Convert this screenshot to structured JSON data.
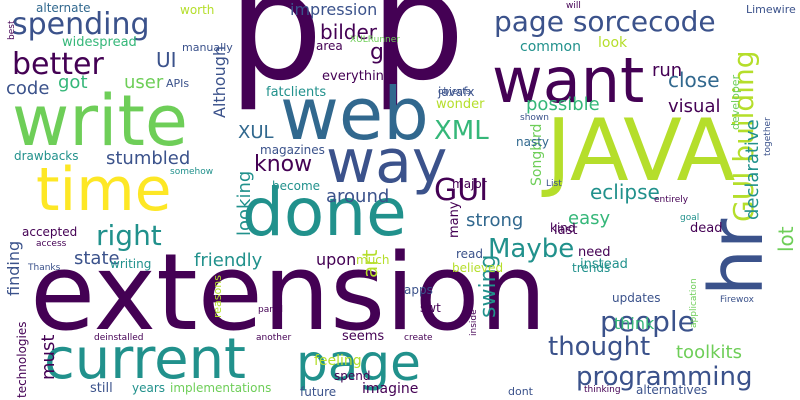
{
  "palette": {
    "dark_purple": "#440154",
    "indigo": "#3b528b",
    "slate": "#31688e",
    "teal": "#21918c",
    "sea": "#35b779",
    "green": "#6ece58",
    "lime": "#b5de2b",
    "yellow": "#fde725"
  },
  "words": [
    "p",
    "p",
    "extension",
    "web",
    "want",
    "JAVA",
    "way",
    "write",
    "done",
    "time",
    "hr",
    "current",
    "page",
    "page sorcecode",
    "spending",
    "better",
    "XML",
    "GUI building",
    "GUI",
    "Maybe",
    "right",
    "people",
    "thought",
    "programming",
    "impression",
    "bilder",
    "go",
    "UI",
    "user",
    "code",
    "got",
    "Although",
    "run",
    "close",
    "possible",
    "visual",
    "declarative",
    "art",
    "swing",
    "know",
    "stumbled",
    "XUL",
    "toolkits",
    "eclipse",
    "Songbird",
    "strong",
    "easy",
    "looking",
    "friendly",
    "state",
    "upon",
    "around",
    "think",
    "finding",
    "must",
    "lot",
    "worth",
    "alternate",
    "Limewire",
    "will",
    "best",
    "widespread",
    "manually",
    "area",
    "XULRunner",
    "common",
    "look",
    "everything",
    "fatclients",
    "javafx",
    "APIs",
    "wonder",
    "objects",
    "shown",
    "developer",
    "together",
    "drawbacks",
    "magazines",
    "nasty",
    "somehow",
    "become",
    "major",
    "List",
    "entirely",
    "goal",
    "technologies",
    "accepted",
    "access",
    "writing",
    "read",
    "Thanks",
    "much",
    "believed",
    "kind",
    "last",
    "need",
    "instead",
    "dead",
    "trends",
    "many",
    "updates",
    "application",
    "Firewox",
    "apps",
    "swt",
    "reasons",
    "panel",
    "inside",
    "deinstalled",
    "another",
    "create",
    "seems",
    "feeling",
    "spend",
    "still",
    "years",
    "implementations",
    "future",
    "imagine",
    "dont",
    "thinking",
    "alternatives"
  ]
}
